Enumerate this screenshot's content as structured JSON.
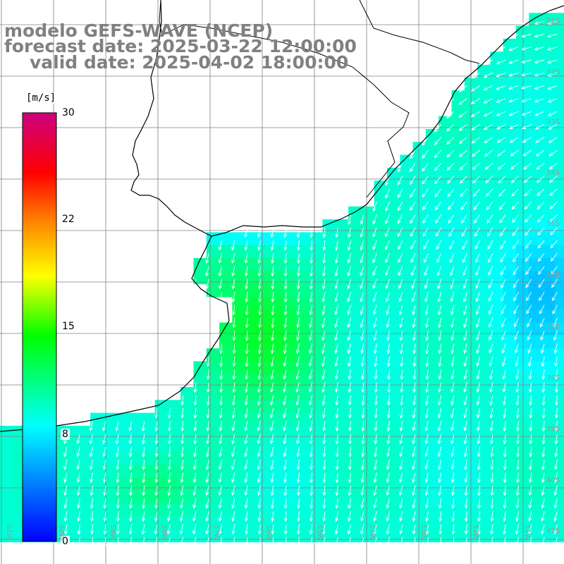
{
  "title": {
    "model": "modelo GEFS-WAVE (NCEP)",
    "forecast": "forecast date: 2025-03-22 12:00:00",
    "valid": "valid date: 2025-04-02 18:00:00"
  },
  "colorbar": {
    "unit": "[m/s]",
    "ticks": [
      "30",
      "22",
      "15",
      "8",
      "0"
    ],
    "tick_values": [
      30,
      22,
      15,
      8,
      0
    ],
    "range": [
      0,
      30
    ],
    "colors": [
      "#0000ff",
      "#00ffff",
      "#00ff00",
      "#ffff00",
      "#ff8000",
      "#ff0000",
      "#cc0080"
    ]
  },
  "grid": {
    "lat_labels": [
      "31S",
      "32S",
      "33S",
      "34S",
      "35S",
      "36S",
      "37S",
      "38S",
      "39S",
      "40S",
      "41S"
    ],
    "lon_labels": [
      "61W",
      "60W",
      "59W",
      "58W",
      "57W",
      "56W",
      "55W",
      "54W",
      "53W",
      "52W",
      "51W"
    ]
  },
  "colors": {
    "land": "#ffffff",
    "grid_line": "#808080",
    "coastline": "#000000",
    "arrows": "#ffffff",
    "title_text": "#808080"
  },
  "field": {
    "variable": "wind speed",
    "unit": "m/s",
    "general_direction": "from north-northeast",
    "speed_range_ms": [
      6,
      14
    ]
  }
}
